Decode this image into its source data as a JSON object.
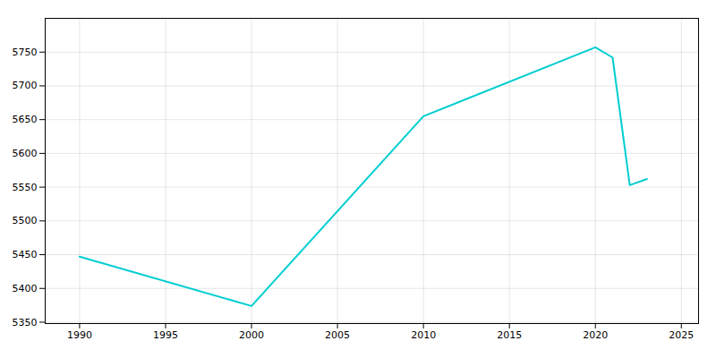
{
  "chart_data": {
    "type": "line",
    "x": [
      1990,
      2000,
      2010,
      2020,
      2021,
      2022,
      2023
    ],
    "values": [
      5447,
      5374,
      5655,
      5757,
      5742,
      5553,
      5562
    ],
    "color": "#00CED1",
    "xlim": [
      1988,
      2026
    ],
    "xticks": [
      1990,
      1995,
      2000,
      2005,
      2010,
      2015,
      2020,
      2025
    ],
    "ylim": [
      5348,
      5800
    ],
    "yticks": [
      5350,
      5400,
      5450,
      5500,
      5550,
      5600,
      5650,
      5700,
      5750
    ],
    "grid": true
  }
}
